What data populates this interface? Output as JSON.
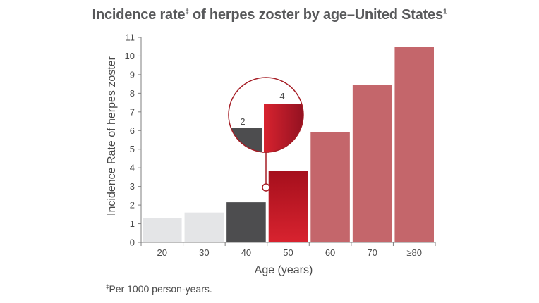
{
  "title": {
    "main": "Incidence rate",
    "marker": "‡",
    "rest": " of herpes zoster by age–United States",
    "ref": "1"
  },
  "footnote": {
    "marker": "‡",
    "text": "Per 1000 person-years."
  },
  "colors": {
    "light_gray": "#e4e5e7",
    "dark_gray": "#4d4d4f",
    "red_dark": "#a50f1c",
    "red_light": "#d8232f",
    "rose": "#c4666b",
    "axis": "#7f7f7f"
  },
  "chart_data": {
    "type": "bar",
    "title": "Incidence rate‡ of herpes zoster by age–United States1",
    "xlabel": "Age (years)",
    "ylabel": "Incidence Rate of herpes zoster",
    "categories": [
      "20",
      "30",
      "40",
      "50",
      "60",
      "70",
      "≥80"
    ],
    "values": [
      1.3,
      1.6,
      2.15,
      3.85,
      5.9,
      8.45,
      10.5
    ],
    "ylim": [
      0,
      11
    ],
    "yticks": [
      0,
      1,
      2,
      3,
      4,
      5,
      6,
      7,
      8,
      9,
      10,
      11
    ],
    "grid": false,
    "bar_colors": [
      "light_gray",
      "light_gray",
      "dark_gray",
      "red",
      "rose",
      "rose",
      "rose"
    ],
    "inset": {
      "description": "zoomed comparison of age 40 vs 50 bars",
      "labels": [
        "2",
        "4"
      ]
    }
  }
}
